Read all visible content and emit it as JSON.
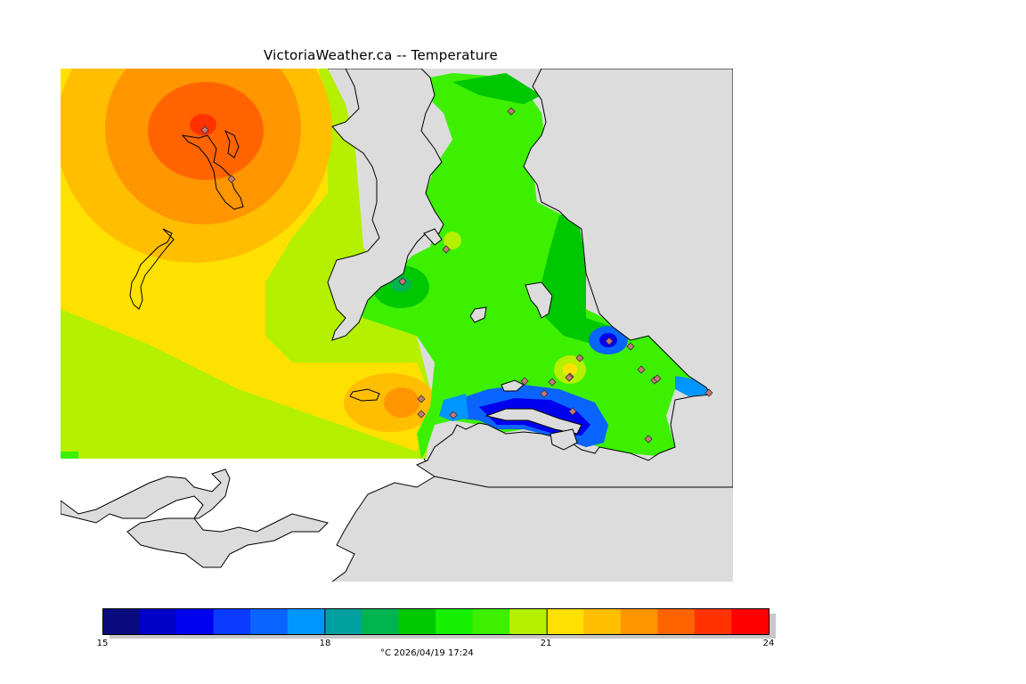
{
  "title": "VictoriaWeather.ca -- Temperature",
  "legend": {
    "min": 15,
    "max": 24,
    "tick_labels": [
      "15",
      "18",
      "21",
      "24"
    ],
    "caption": "°C  2026/04/19 17:24",
    "colors": [
      "#0b0b80",
      "#0000c8",
      "#0000f0",
      "#0a3cff",
      "#0a64ff",
      "#0096ff",
      "#00a0a0",
      "#00b450",
      "#00c800",
      "#14f000",
      "#3cf000",
      "#b4f000",
      "#ffe100",
      "#ffbe00",
      "#ff9600",
      "#ff6400",
      "#ff3200",
      "#ff0000"
    ]
  },
  "map": {
    "background_color": "#dcdcdc",
    "station_count": 22
  }
}
